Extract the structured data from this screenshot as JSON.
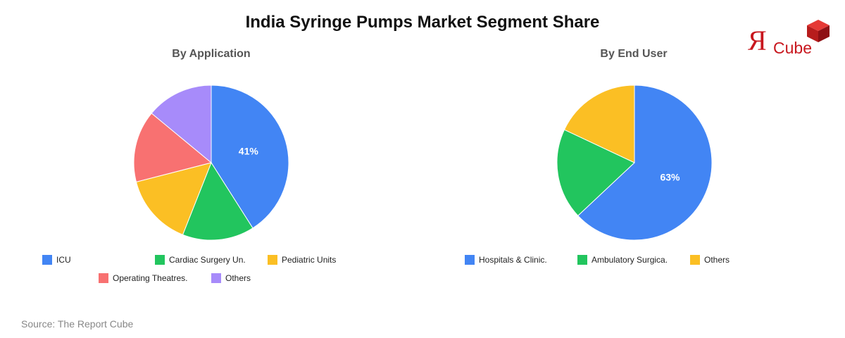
{
  "title": "India Syringe Pumps Market Segment Share",
  "logo": {
    "mark": "Я",
    "word": "Cube",
    "icon": "red-cube-icon",
    "color": "#c8171e"
  },
  "source": "Source: The Report Cube",
  "chart_data": [
    {
      "type": "pie",
      "title": "By Application",
      "legend_position": "bottom",
      "slices": [
        {
          "label": "ICU",
          "value": 41,
          "color": "#4285f4",
          "data_label": "41%"
        },
        {
          "label": "Cardiac Surgery Un.",
          "value": 15,
          "color": "#22c55e"
        },
        {
          "label": "Pediatric Units",
          "value": 15,
          "color": "#fbbf24"
        },
        {
          "label": "Operating Theatres.",
          "value": 15,
          "color": "#f87171"
        },
        {
          "label": "Others",
          "value": 14,
          "color": "#a78bfa"
        }
      ]
    },
    {
      "type": "pie",
      "title": "By End User",
      "legend_position": "bottom",
      "slices": [
        {
          "label": "Hospitals & Clinic.",
          "value": 63,
          "color": "#4285f4",
          "data_label": "63%"
        },
        {
          "label": "Ambulatory Surgica.",
          "value": 19,
          "color": "#22c55e"
        },
        {
          "label": "Others",
          "value": 18,
          "color": "#fbbf24"
        }
      ]
    }
  ]
}
